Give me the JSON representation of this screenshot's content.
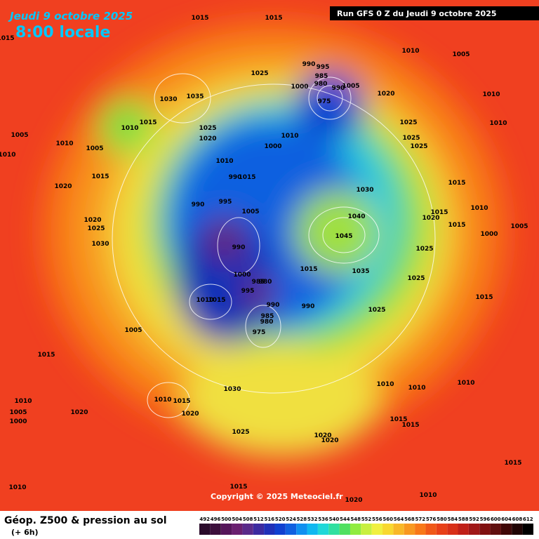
{
  "header": {
    "date": "Jeudi 9 octobre 2025",
    "time": "8:00 locale",
    "run": "Run GFS 0 Z du Jeudi 9 octobre 2025"
  },
  "map": {
    "copyright": "Copyright © 2025 Meteociel.fr",
    "isobar_labels": [
      1015,
      1015,
      1015,
      1005,
      1010,
      1025,
      990,
      995,
      985,
      980,
      1000,
      990,
      1005,
      975,
      1020,
      1035,
      1030,
      1010,
      1015,
      1010,
      1025,
      1020,
      1025,
      1010,
      1005,
      1010,
      1005,
      1000,
      1010,
      1025,
      1025,
      1010,
      1010,
      990,
      1015,
      1015,
      1030,
      1015,
      1020,
      990,
      995,
      1005,
      1020,
      1025,
      1040,
      1015,
      1020,
      1015,
      1010,
      1030,
      990,
      1045,
      1000,
      1005,
      1025,
      1015,
      1035,
      1025,
      1000,
      985,
      980,
      995,
      1015,
      1010,
      990,
      990,
      1015,
      1025,
      985,
      980,
      975,
      1005,
      1015,
      1010,
      1010,
      1010,
      1030,
      1010,
      1015,
      1010,
      1005,
      1000,
      1020,
      1020,
      1025,
      1015,
      1015,
      1020,
      1020,
      1015,
      1010,
      1015,
      1010,
      1020
    ]
  },
  "footer": {
    "title": "Géop. Z500 & pression au sol",
    "subtitle": "(+ 6h)",
    "scale": {
      "labels": [
        492,
        496,
        500,
        504,
        508,
        512,
        516,
        520,
        524,
        528,
        532,
        536,
        540,
        544,
        548,
        552,
        556,
        560,
        564,
        568,
        572,
        576,
        580,
        584,
        588,
        592,
        596,
        600,
        604,
        608,
        612
      ],
      "colors": [
        "#2a0a2a",
        "#3c0f3c",
        "#55165a",
        "#6a2070",
        "#5a2a8a",
        "#3c2aa0",
        "#2030b8",
        "#1040d0",
        "#1060e0",
        "#1090f0",
        "#10b8f0",
        "#20d8d8",
        "#30e0a0",
        "#50e060",
        "#90ec40",
        "#c8f040",
        "#f0f040",
        "#f8d830",
        "#f8b828",
        "#f89820",
        "#f87818",
        "#f05818",
        "#e84018",
        "#d83018",
        "#c02018",
        "#a01818",
        "#801010",
        "#601010",
        "#400808",
        "#200404",
        "#000000"
      ]
    }
  }
}
